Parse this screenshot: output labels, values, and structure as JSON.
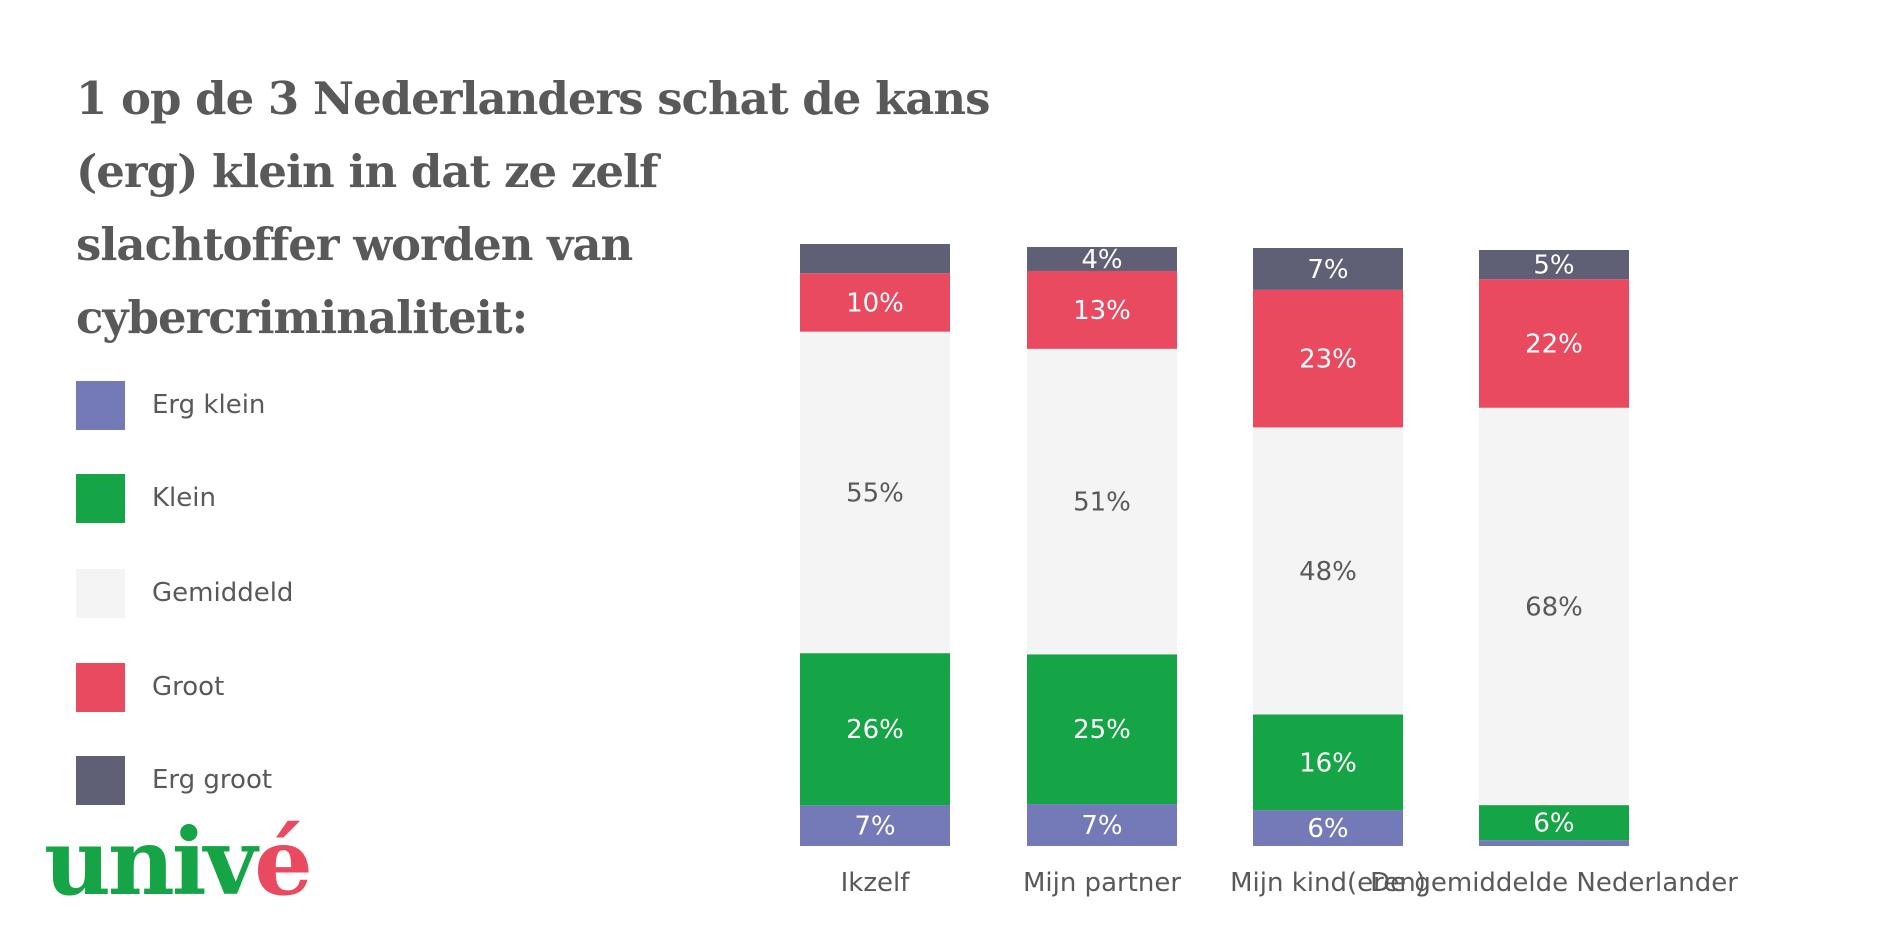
{
  "title_lines": [
    "1 op de 3 Nederlanders schat de kans",
    "(erg) klein in dat ze zelf",
    "slachtoffer worden van",
    "cybercriminaliteit:"
  ],
  "logo": {
    "main": "univ",
    "accent": "é"
  },
  "chart_data": {
    "type": "bar",
    "stacked": true,
    "title": "1 op de 3 Nederlanders schat de kans (erg) klein in dat ze zelf slachtoffer worden van cybercriminaliteit:",
    "categories": [
      "Ikzelf",
      "Mijn partner",
      "Mijn kind(eren)",
      "De gemiddelde Nederlander"
    ],
    "series": [
      {
        "name": "Erg klein",
        "color": "#7479b8",
        "values": [
          7,
          7,
          6,
          1
        ],
        "labels": [
          "7%",
          "7%",
          "6%",
          null
        ]
      },
      {
        "name": "Klein",
        "color": "#16a546",
        "values": [
          26,
          25,
          16,
          6
        ],
        "labels": [
          "26%",
          "25%",
          "16%",
          "6%"
        ]
      },
      {
        "name": "Gemiddeld",
        "color": "#f4f4f4",
        "values": [
          55,
          51,
          48,
          68
        ],
        "labels": [
          "55%",
          "51%",
          "48%",
          "68%"
        ]
      },
      {
        "name": "Groot",
        "color": "#e94a5f",
        "values": [
          10,
          13,
          23,
          22
        ],
        "labels": [
          "10%",
          "13%",
          "23%",
          "22%"
        ]
      },
      {
        "name": "Erg groot",
        "color": "#5f5f75",
        "values": [
          5,
          4,
          7,
          5
        ],
        "labels": [
          null,
          "4%",
          "7%",
          "5%"
        ]
      }
    ],
    "legend": "left",
    "grid": false,
    "ylim": [
      0,
      100
    ]
  }
}
